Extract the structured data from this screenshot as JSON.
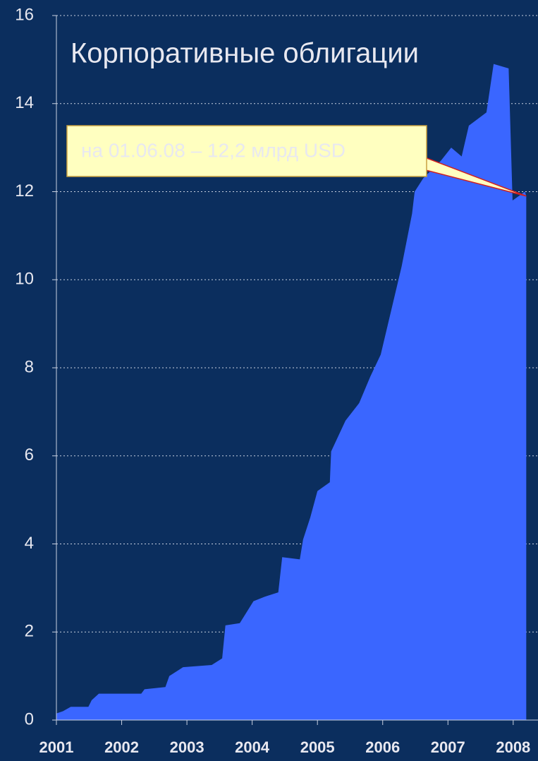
{
  "chart_data": {
    "type": "area",
    "title": "Корпоративные облигации",
    "annotation": "на 01.06.08 – 12,2 млрд USD",
    "color": "#3a66ff",
    "background": "#0b2e5e",
    "x": [
      2001.0,
      2001.1,
      2001.22,
      2001.49,
      2001.54,
      2001.65,
      2002.3,
      2002.35,
      2002.67,
      2002.73,
      2002.94,
      2003.38,
      2003.54,
      2003.59,
      2003.81,
      2004.02,
      2004.19,
      2004.4,
      2004.46,
      2004.73,
      2004.78,
      2004.89,
      2005.0,
      2005.19,
      2005.21,
      2005.43,
      2005.64,
      2005.81,
      2005.97,
      2006.13,
      2006.29,
      2006.45,
      2006.49,
      2006.62,
      2006.89,
      2007.05,
      2007.21,
      2007.32,
      2007.59,
      2007.7,
      2007.93,
      2007.99,
      2008.18,
      2008.2
    ],
    "values": [
      0.15,
      0.2,
      0.3,
      0.3,
      0.45,
      0.6,
      0.6,
      0.7,
      0.75,
      1.0,
      1.2,
      1.25,
      1.4,
      2.15,
      2.2,
      2.7,
      2.8,
      2.9,
      3.7,
      3.65,
      4.1,
      4.6,
      5.2,
      5.4,
      6.1,
      6.8,
      7.2,
      7.8,
      8.3,
      9.3,
      10.3,
      11.5,
      12.0,
      12.3,
      12.7,
      13.0,
      12.8,
      13.5,
      13.8,
      14.9,
      14.8,
      11.8,
      12.0,
      11.9
    ],
    "xlim": [
      2001,
      2008.38
    ],
    "xticks": [
      2001,
      2002,
      2003,
      2004,
      2005,
      2006,
      2007,
      2008
    ],
    "ylim": [
      0,
      16
    ],
    "yticks": [
      0,
      2,
      4,
      6,
      8,
      10,
      12,
      14,
      16
    ],
    "grid": true
  }
}
